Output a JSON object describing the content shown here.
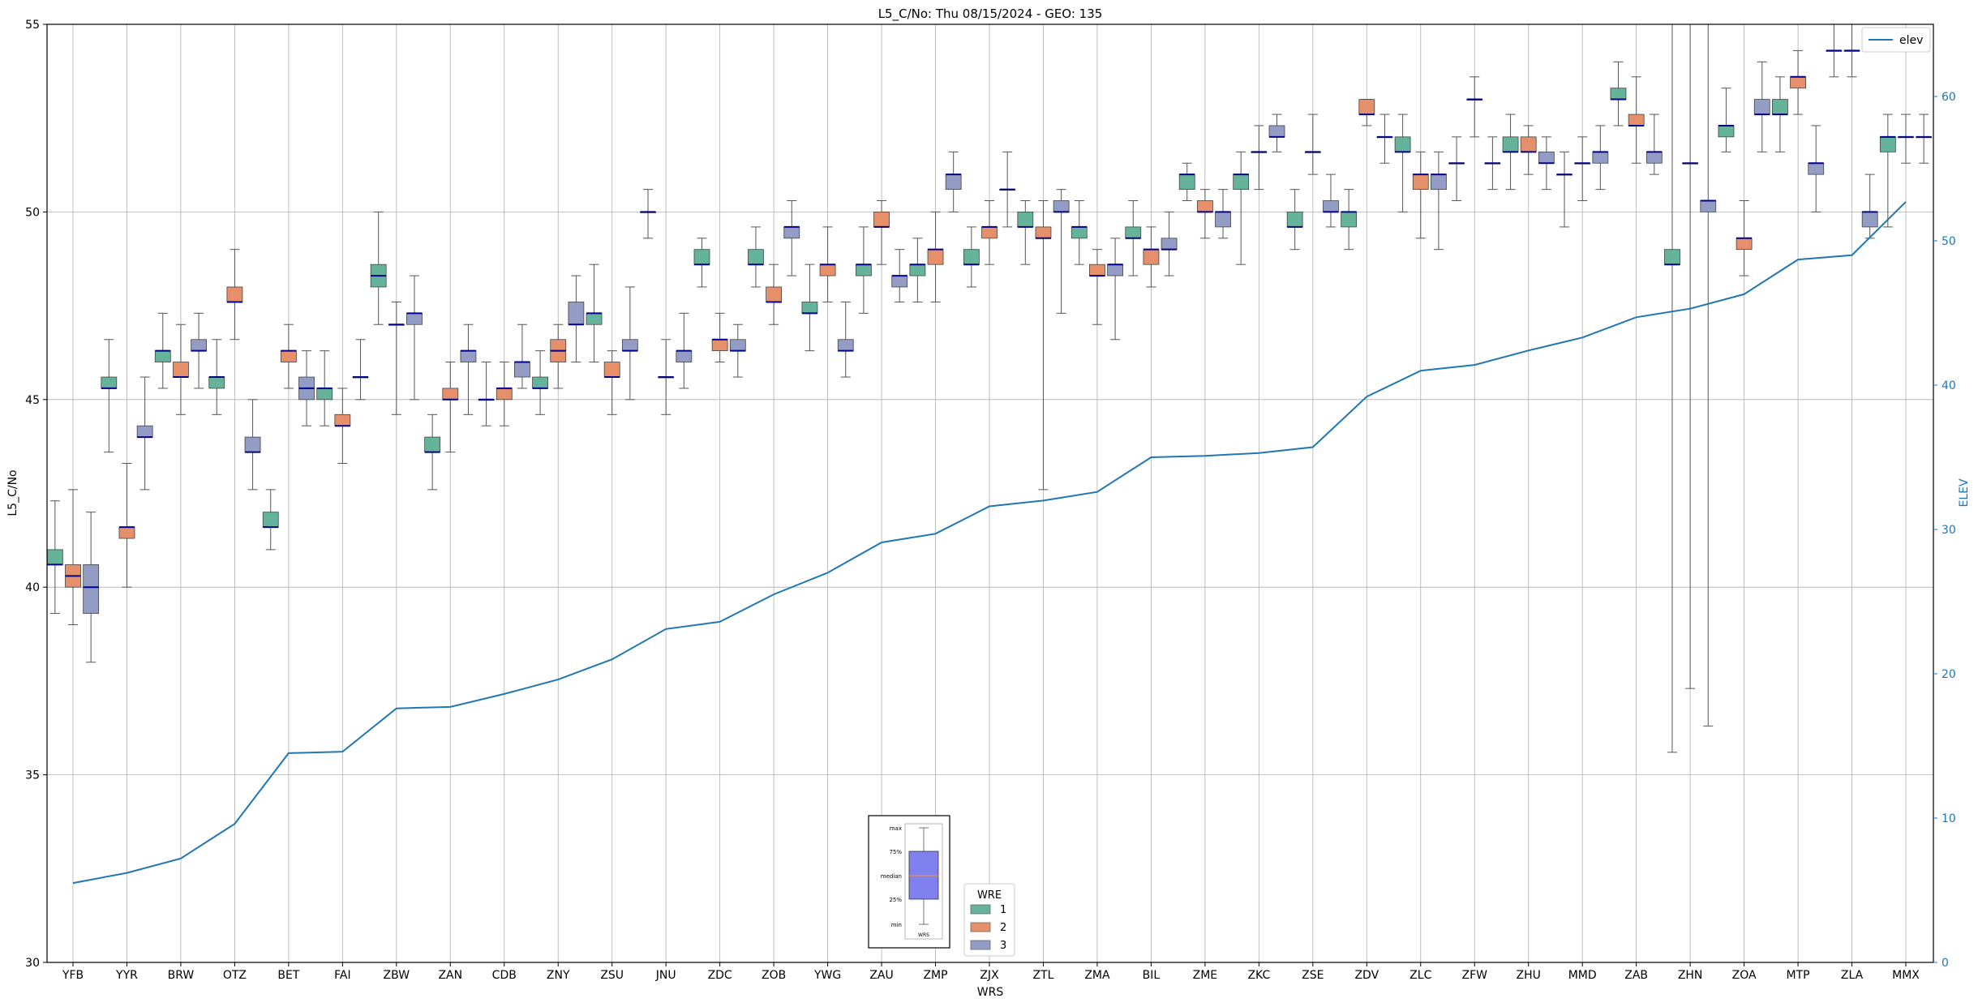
{
  "chart_data": {
    "type": "box",
    "title": "L5_C/No: Thu 08/15/2024 - GEO: 135",
    "xlabel": "WRS",
    "ylabel": "L5_C/No",
    "y2label": "ELEV",
    "ylim": [
      30,
      55
    ],
    "y2lim": [
      0,
      65
    ],
    "yticks": [
      30,
      35,
      40,
      45,
      50,
      55
    ],
    "y2ticks": [
      0,
      10,
      20,
      30,
      40,
      50,
      60
    ],
    "grid": true,
    "categories": [
      "YFB",
      "YYR",
      "BRW",
      "OTZ",
      "BET",
      "FAI",
      "ZBW",
      "ZAN",
      "CDB",
      "ZNY",
      "ZSU",
      "JNU",
      "ZDC",
      "ZOB",
      "YWG",
      "ZAU",
      "ZMP",
      "ZJX",
      "ZTL",
      "ZMA",
      "BIL",
      "ZME",
      "ZKC",
      "ZSE",
      "ZDV",
      "ZLC",
      "ZFW",
      "ZHU",
      "MMD",
      "ZAB",
      "ZHN",
      "ZOA",
      "MTP",
      "ZLA",
      "MMX"
    ],
    "elev_series": {
      "name": "elev",
      "color": "#1f77b4",
      "values": [
        5.5,
        6.2,
        7.2,
        9.6,
        14.5,
        14.6,
        17.6,
        17.7,
        18.6,
        19.6,
        21.0,
        23.1,
        23.6,
        25.5,
        27.0,
        29.1,
        29.7,
        31.6,
        32.0,
        32.6,
        35.0,
        35.1,
        35.3,
        35.7,
        39.2,
        41.0,
        41.4,
        42.4,
        43.3,
        44.7,
        45.3,
        46.3,
        48.7,
        49.0,
        52.7
      ]
    },
    "wre_legend": {
      "title": "WRE",
      "entries": [
        {
          "name": "1",
          "color": "#66b39b"
        },
        {
          "name": "2",
          "color": "#e5906b"
        },
        {
          "name": "3",
          "color": "#939cc4"
        }
      ]
    },
    "elev_legend_label": "elev",
    "inset_key": {
      "labels": [
        "max",
        "75%",
        "median",
        "25%",
        "min"
      ],
      "xlabel": "WRS",
      "box_color": "#8080ee"
    },
    "boxes": [
      {
        "cat": "YFB",
        "wre": 1,
        "min": 39.3,
        "q1": 40.6,
        "med": 40.6,
        "q3": 41.0,
        "max": 42.3
      },
      {
        "cat": "YFB",
        "wre": 2,
        "min": 39.0,
        "q1": 40.0,
        "med": 40.3,
        "q3": 40.6,
        "max": 42.6
      },
      {
        "cat": "YFB",
        "wre": 3,
        "min": 38.0,
        "q1": 39.3,
        "med": 40.0,
        "q3": 40.6,
        "max": 42.0
      },
      {
        "cat": "YYR",
        "wre": 1,
        "min": 43.6,
        "q1": 45.3,
        "med": 45.3,
        "q3": 45.6,
        "max": 46.6
      },
      {
        "cat": "YYR",
        "wre": 2,
        "min": 40.0,
        "q1": 41.3,
        "med": 41.6,
        "q3": 41.6,
        "max": 43.3
      },
      {
        "cat": "YYR",
        "wre": 3,
        "min": 42.6,
        "q1": 44.0,
        "med": 44.0,
        "q3": 44.3,
        "max": 45.6
      },
      {
        "cat": "BRW",
        "wre": 1,
        "min": 45.3,
        "q1": 46.0,
        "med": 46.3,
        "q3": 46.3,
        "max": 47.3
      },
      {
        "cat": "BRW",
        "wre": 2,
        "min": 44.6,
        "q1": 45.6,
        "med": 45.6,
        "q3": 46.0,
        "max": 47.0
      },
      {
        "cat": "BRW",
        "wre": 3,
        "min": 45.3,
        "q1": 46.3,
        "med": 46.3,
        "q3": 46.6,
        "max": 47.3
      },
      {
        "cat": "OTZ",
        "wre": 1,
        "min": 44.6,
        "q1": 45.3,
        "med": 45.6,
        "q3": 45.6,
        "max": 46.6
      },
      {
        "cat": "OTZ",
        "wre": 2,
        "min": 46.6,
        "q1": 47.6,
        "med": 47.6,
        "q3": 48.0,
        "max": 49.0
      },
      {
        "cat": "OTZ",
        "wre": 3,
        "min": 42.6,
        "q1": 43.6,
        "med": 43.6,
        "q3": 44.0,
        "max": 45.0
      },
      {
        "cat": "BET",
        "wre": 1,
        "min": 41.0,
        "q1": 41.6,
        "med": 41.6,
        "q3": 42.0,
        "max": 42.6
      },
      {
        "cat": "BET",
        "wre": 2,
        "min": 45.3,
        "q1": 46.0,
        "med": 46.3,
        "q3": 46.3,
        "max": 47.0
      },
      {
        "cat": "BET",
        "wre": 3,
        "min": 44.3,
        "q1": 45.0,
        "med": 45.3,
        "q3": 45.6,
        "max": 46.3
      },
      {
        "cat": "FAI",
        "wre": 1,
        "min": 44.3,
        "q1": 45.0,
        "med": 45.3,
        "q3": 45.3,
        "max": 46.3
      },
      {
        "cat": "FAI",
        "wre": 2,
        "min": 43.3,
        "q1": 44.3,
        "med": 44.3,
        "q3": 44.6,
        "max": 45.3
      },
      {
        "cat": "FAI",
        "wre": 3,
        "min": 45.0,
        "q1": 45.6,
        "med": 45.6,
        "q3": 45.6,
        "max": 46.6
      },
      {
        "cat": "ZBW",
        "wre": 1,
        "min": 47.0,
        "q1": 48.0,
        "med": 48.3,
        "q3": 48.6,
        "max": 50.0
      },
      {
        "cat": "ZBW",
        "wre": 2,
        "min": 44.6,
        "q1": 47.0,
        "med": 47.0,
        "q3": 47.0,
        "max": 47.6
      },
      {
        "cat": "ZBW",
        "wre": 3,
        "min": 45.0,
        "q1": 47.0,
        "med": 47.3,
        "q3": 47.3,
        "max": 48.3
      },
      {
        "cat": "ZAN",
        "wre": 1,
        "min": 42.6,
        "q1": 43.6,
        "med": 43.6,
        "q3": 44.0,
        "max": 44.6
      },
      {
        "cat": "ZAN",
        "wre": 2,
        "min": 43.6,
        "q1": 45.0,
        "med": 45.0,
        "q3": 45.3,
        "max": 46.0
      },
      {
        "cat": "ZAN",
        "wre": 3,
        "min": 44.6,
        "q1": 46.0,
        "med": 46.3,
        "q3": 46.3,
        "max": 47.0
      },
      {
        "cat": "CDB",
        "wre": 1,
        "min": 44.3,
        "q1": 45.0,
        "med": 45.0,
        "q3": 45.0,
        "max": 46.0
      },
      {
        "cat": "CDB",
        "wre": 2,
        "min": 44.3,
        "q1": 45.0,
        "med": 45.3,
        "q3": 45.3,
        "max": 46.0
      },
      {
        "cat": "CDB",
        "wre": 3,
        "min": 45.3,
        "q1": 45.6,
        "med": 46.0,
        "q3": 46.0,
        "max": 47.0
      },
      {
        "cat": "ZNY",
        "wre": 1,
        "min": 44.6,
        "q1": 45.3,
        "med": 45.3,
        "q3": 45.6,
        "max": 46.3
      },
      {
        "cat": "ZNY",
        "wre": 2,
        "min": 45.3,
        "q1": 46.0,
        "med": 46.3,
        "q3": 46.6,
        "max": 47.0
      },
      {
        "cat": "ZNY",
        "wre": 3,
        "min": 46.0,
        "q1": 47.0,
        "med": 47.0,
        "q3": 47.6,
        "max": 48.3
      },
      {
        "cat": "ZSU",
        "wre": 1,
        "min": 46.0,
        "q1": 47.0,
        "med": 47.3,
        "q3": 47.3,
        "max": 48.6
      },
      {
        "cat": "ZSU",
        "wre": 2,
        "min": 44.6,
        "q1": 45.6,
        "med": 45.6,
        "q3": 46.0,
        "max": 46.3
      },
      {
        "cat": "ZSU",
        "wre": 3,
        "min": 45.0,
        "q1": 46.3,
        "med": 46.3,
        "q3": 46.6,
        "max": 48.0
      },
      {
        "cat": "JNU",
        "wre": 1,
        "min": 49.3,
        "q1": 50.0,
        "med": 50.0,
        "q3": 50.0,
        "max": 50.6
      },
      {
        "cat": "JNU",
        "wre": 2,
        "min": 44.6,
        "q1": 45.6,
        "med": 45.6,
        "q3": 45.6,
        "max": 46.6
      },
      {
        "cat": "JNU",
        "wre": 3,
        "min": 45.3,
        "q1": 46.0,
        "med": 46.3,
        "q3": 46.3,
        "max": 47.3
      },
      {
        "cat": "ZDC",
        "wre": 1,
        "min": 48.0,
        "q1": 48.6,
        "med": 48.6,
        "q3": 49.0,
        "max": 49.3
      },
      {
        "cat": "ZDC",
        "wre": 2,
        "min": 46.0,
        "q1": 46.3,
        "med": 46.6,
        "q3": 46.6,
        "max": 47.3
      },
      {
        "cat": "ZDC",
        "wre": 3,
        "min": 45.6,
        "q1": 46.3,
        "med": 46.3,
        "q3": 46.6,
        "max": 47.0
      },
      {
        "cat": "ZOB",
        "wre": 1,
        "min": 48.0,
        "q1": 48.6,
        "med": 48.6,
        "q3": 49.0,
        "max": 49.6
      },
      {
        "cat": "ZOB",
        "wre": 2,
        "min": 47.0,
        "q1": 47.6,
        "med": 47.6,
        "q3": 48.0,
        "max": 48.6
      },
      {
        "cat": "ZOB",
        "wre": 3,
        "min": 48.3,
        "q1": 49.3,
        "med": 49.6,
        "q3": 49.6,
        "max": 50.3
      },
      {
        "cat": "YWG",
        "wre": 1,
        "min": 46.3,
        "q1": 47.3,
        "med": 47.3,
        "q3": 47.6,
        "max": 48.6
      },
      {
        "cat": "YWG",
        "wre": 2,
        "min": 47.6,
        "q1": 48.3,
        "med": 48.6,
        "q3": 48.6,
        "max": 49.6
      },
      {
        "cat": "YWG",
        "wre": 3,
        "min": 45.6,
        "q1": 46.3,
        "med": 46.3,
        "q3": 46.6,
        "max": 47.6
      },
      {
        "cat": "ZAU",
        "wre": 1,
        "min": 47.3,
        "q1": 48.3,
        "med": 48.6,
        "q3": 48.6,
        "max": 49.6
      },
      {
        "cat": "ZAU",
        "wre": 2,
        "min": 48.6,
        "q1": 49.6,
        "med": 49.6,
        "q3": 50.0,
        "max": 50.3
      },
      {
        "cat": "ZAU",
        "wre": 3,
        "min": 47.6,
        "q1": 48.0,
        "med": 48.3,
        "q3": 48.3,
        "max": 49.0
      },
      {
        "cat": "ZMP",
        "wre": 1,
        "min": 47.6,
        "q1": 48.3,
        "med": 48.6,
        "q3": 48.6,
        "max": 49.3
      },
      {
        "cat": "ZMP",
        "wre": 2,
        "min": 47.6,
        "q1": 48.6,
        "med": 49.0,
        "q3": 49.0,
        "max": 50.0
      },
      {
        "cat": "ZMP",
        "wre": 3,
        "min": 50.0,
        "q1": 50.6,
        "med": 51.0,
        "q3": 51.0,
        "max": 51.6
      },
      {
        "cat": "ZJX",
        "wre": 1,
        "min": 48.0,
        "q1": 48.6,
        "med": 48.6,
        "q3": 49.0,
        "max": 49.6
      },
      {
        "cat": "ZJX",
        "wre": 2,
        "min": 48.6,
        "q1": 49.3,
        "med": 49.6,
        "q3": 49.6,
        "max": 50.3
      },
      {
        "cat": "ZJX",
        "wre": 3,
        "min": 49.6,
        "q1": 50.6,
        "med": 50.6,
        "q3": 50.6,
        "max": 51.6
      },
      {
        "cat": "ZTL",
        "wre": 1,
        "min": 48.6,
        "q1": 49.6,
        "med": 49.6,
        "q3": 50.0,
        "max": 50.3
      },
      {
        "cat": "ZTL",
        "wre": 2,
        "min": 42.6,
        "q1": 49.3,
        "med": 49.3,
        "q3": 49.6,
        "max": 50.3
      },
      {
        "cat": "ZTL",
        "wre": 3,
        "min": 47.3,
        "q1": 50.0,
        "med": 50.0,
        "q3": 50.3,
        "max": 50.6
      },
      {
        "cat": "ZMA",
        "wre": 1,
        "min": 48.6,
        "q1": 49.3,
        "med": 49.6,
        "q3": 49.6,
        "max": 50.3
      },
      {
        "cat": "ZMA",
        "wre": 2,
        "min": 47.0,
        "q1": 48.3,
        "med": 48.3,
        "q3": 48.6,
        "max": 49.0
      },
      {
        "cat": "ZMA",
        "wre": 3,
        "min": 46.6,
        "q1": 48.3,
        "med": 48.6,
        "q3": 48.6,
        "max": 49.3
      },
      {
        "cat": "BIL",
        "wre": 1,
        "min": 48.3,
        "q1": 49.3,
        "med": 49.3,
        "q3": 49.6,
        "max": 50.3
      },
      {
        "cat": "BIL",
        "wre": 2,
        "min": 48.0,
        "q1": 48.6,
        "med": 49.0,
        "q3": 49.0,
        "max": 49.6
      },
      {
        "cat": "BIL",
        "wre": 3,
        "min": 48.3,
        "q1": 49.0,
        "med": 49.0,
        "q3": 49.3,
        "max": 50.0
      },
      {
        "cat": "ZME",
        "wre": 1,
        "min": 50.3,
        "q1": 50.6,
        "med": 51.0,
        "q3": 51.0,
        "max": 51.3
      },
      {
        "cat": "ZME",
        "wre": 2,
        "min": 49.3,
        "q1": 50.0,
        "med": 50.0,
        "q3": 50.3,
        "max": 50.6
      },
      {
        "cat": "ZME",
        "wre": 3,
        "min": 49.3,
        "q1": 49.6,
        "med": 50.0,
        "q3": 50.0,
        "max": 50.6
      },
      {
        "cat": "ZKC",
        "wre": 1,
        "min": 48.6,
        "q1": 50.6,
        "med": 51.0,
        "q3": 51.0,
        "max": 51.6
      },
      {
        "cat": "ZKC",
        "wre": 2,
        "min": 50.6,
        "q1": 51.6,
        "med": 51.6,
        "q3": 51.6,
        "max": 52.3
      },
      {
        "cat": "ZKC",
        "wre": 3,
        "min": 51.6,
        "q1": 52.0,
        "med": 52.0,
        "q3": 52.3,
        "max": 52.6
      },
      {
        "cat": "ZSE",
        "wre": 1,
        "min": 49.0,
        "q1": 49.6,
        "med": 49.6,
        "q3": 50.0,
        "max": 50.6
      },
      {
        "cat": "ZSE",
        "wre": 2,
        "min": 51.0,
        "q1": 51.6,
        "med": 51.6,
        "q3": 51.6,
        "max": 52.6
      },
      {
        "cat": "ZSE",
        "wre": 3,
        "min": 49.6,
        "q1": 50.0,
        "med": 50.0,
        "q3": 50.3,
        "max": 51.0
      },
      {
        "cat": "ZDV",
        "wre": 1,
        "min": 49.0,
        "q1": 49.6,
        "med": 50.0,
        "q3": 50.0,
        "max": 50.6
      },
      {
        "cat": "ZDV",
        "wre": 2,
        "min": 52.3,
        "q1": 52.6,
        "med": 52.6,
        "q3": 53.0,
        "max": 53.0
      },
      {
        "cat": "ZDV",
        "wre": 3,
        "min": 51.3,
        "q1": 52.0,
        "med": 52.0,
        "q3": 52.0,
        "max": 52.6
      },
      {
        "cat": "ZLC",
        "wre": 1,
        "min": 50.0,
        "q1": 51.6,
        "med": 51.6,
        "q3": 52.0,
        "max": 52.6
      },
      {
        "cat": "ZLC",
        "wre": 2,
        "min": 49.3,
        "q1": 50.6,
        "med": 51.0,
        "q3": 51.0,
        "max": 51.6
      },
      {
        "cat": "ZLC",
        "wre": 3,
        "min": 49.0,
        "q1": 50.6,
        "med": 51.0,
        "q3": 51.0,
        "max": 51.6
      },
      {
        "cat": "ZFW",
        "wre": 1,
        "min": 50.3,
        "q1": 51.3,
        "med": 51.3,
        "q3": 51.3,
        "max": 52.0
      },
      {
        "cat": "ZFW",
        "wre": 2,
        "min": 52.0,
        "q1": 53.0,
        "med": 53.0,
        "q3": 53.0,
        "max": 53.6
      },
      {
        "cat": "ZFW",
        "wre": 3,
        "min": 50.6,
        "q1": 51.3,
        "med": 51.3,
        "q3": 51.3,
        "max": 52.0
      },
      {
        "cat": "ZHU",
        "wre": 1,
        "min": 50.6,
        "q1": 51.6,
        "med": 51.6,
        "q3": 52.0,
        "max": 52.6
      },
      {
        "cat": "ZHU",
        "wre": 2,
        "min": 51.0,
        "q1": 51.6,
        "med": 51.6,
        "q3": 52.0,
        "max": 52.3
      },
      {
        "cat": "ZHU",
        "wre": 3,
        "min": 50.6,
        "q1": 51.3,
        "med": 51.3,
        "q3": 51.6,
        "max": 52.0
      },
      {
        "cat": "MMD",
        "wre": 1,
        "min": 49.6,
        "q1": 51.0,
        "med": 51.0,
        "q3": 51.0,
        "max": 51.6
      },
      {
        "cat": "MMD",
        "wre": 2,
        "min": 50.3,
        "q1": 51.3,
        "med": 51.3,
        "q3": 51.3,
        "max": 52.0
      },
      {
        "cat": "MMD",
        "wre": 3,
        "min": 50.6,
        "q1": 51.3,
        "med": 51.6,
        "q3": 51.6,
        "max": 52.3
      },
      {
        "cat": "ZAB",
        "wre": 1,
        "min": 52.3,
        "q1": 53.0,
        "med": 53.0,
        "q3": 53.3,
        "max": 54.0
      },
      {
        "cat": "ZAB",
        "wre": 2,
        "min": 51.3,
        "q1": 52.3,
        "med": 52.3,
        "q3": 52.6,
        "max": 53.6
      },
      {
        "cat": "ZAB",
        "wre": 3,
        "min": 51.0,
        "q1": 51.3,
        "med": 51.6,
        "q3": 51.6,
        "max": 52.6
      },
      {
        "cat": "ZHN",
        "wre": 1,
        "min": 35.6,
        "q1": 48.6,
        "med": 48.6,
        "q3": 49.0,
        "max": 55.5
      },
      {
        "cat": "ZHN",
        "wre": 2,
        "min": 37.3,
        "q1": 51.3,
        "med": 51.3,
        "q3": 51.3,
        "max": 55.5
      },
      {
        "cat": "ZHN",
        "wre": 3,
        "min": 36.3,
        "q1": 50.0,
        "med": 50.3,
        "q3": 50.3,
        "max": 55.5
      },
      {
        "cat": "ZOA",
        "wre": 1,
        "min": 51.6,
        "q1": 52.0,
        "med": 52.3,
        "q3": 52.3,
        "max": 53.3
      },
      {
        "cat": "ZOA",
        "wre": 2,
        "min": 48.3,
        "q1": 49.0,
        "med": 49.3,
        "q3": 49.3,
        "max": 50.3
      },
      {
        "cat": "ZOA",
        "wre": 3,
        "min": 51.6,
        "q1": 52.6,
        "med": 52.6,
        "q3": 53.0,
        "max": 54.0
      },
      {
        "cat": "MTP",
        "wre": 1,
        "min": 51.6,
        "q1": 52.6,
        "med": 52.6,
        "q3": 53.0,
        "max": 53.6
      },
      {
        "cat": "MTP",
        "wre": 2,
        "min": 52.6,
        "q1": 53.3,
        "med": 53.6,
        "q3": 53.6,
        "max": 54.3
      },
      {
        "cat": "MTP",
        "wre": 3,
        "min": 50.0,
        "q1": 51.0,
        "med": 51.3,
        "q3": 51.3,
        "max": 52.3
      },
      {
        "cat": "ZLA",
        "wre": 1,
        "min": 53.6,
        "q1": 54.3,
        "med": 54.3,
        "q3": 54.3,
        "max": 55.5
      },
      {
        "cat": "ZLA",
        "wre": 2,
        "min": 53.6,
        "q1": 54.3,
        "med": 54.3,
        "q3": 54.3,
        "max": 55.5
      },
      {
        "cat": "ZLA",
        "wre": 3,
        "min": 49.3,
        "q1": 49.6,
        "med": 50.0,
        "q3": 50.0,
        "max": 51.0
      },
      {
        "cat": "MMX",
        "wre": 1,
        "min": 49.6,
        "q1": 51.6,
        "med": 52.0,
        "q3": 52.0,
        "max": 52.6
      },
      {
        "cat": "MMX",
        "wre": 2,
        "min": 51.3,
        "q1": 52.0,
        "med": 52.0,
        "q3": 52.0,
        "max": 52.6
      },
      {
        "cat": "MMX",
        "wre": 3,
        "min": 51.3,
        "q1": 52.0,
        "med": 52.0,
        "q3": 52.0,
        "max": 52.6
      }
    ]
  }
}
